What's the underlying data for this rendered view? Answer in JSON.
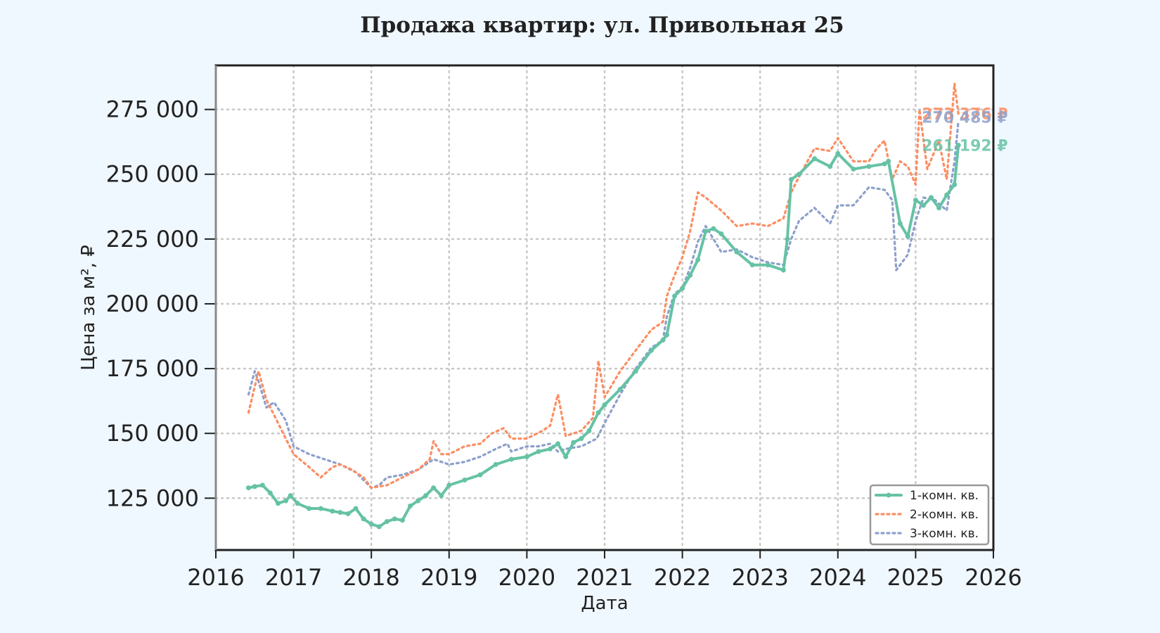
{
  "colors": {
    "background": "#f0f8ff",
    "plot_background": "#ffffff",
    "grid": "#c8c8c8",
    "series_1": "#66c2a5",
    "series_2": "#fc8d62",
    "series_3": "#8da0cb"
  },
  "chart_data": {
    "type": "line",
    "title": "Продажа квартир: ул. Привольная 25",
    "xlabel": "Дата",
    "ylabel": "Цена за м², ₽",
    "xlim": [
      2016,
      2026
    ],
    "ylim": [
      105000,
      292000
    ],
    "grid": true,
    "legend_position": "lower-right",
    "x_ticks": [
      "2016",
      "2017",
      "2018",
      "2019",
      "2020",
      "2021",
      "2022",
      "2023",
      "2024",
      "2025",
      "2026"
    ],
    "y_ticks": [
      "125 000",
      "150 000",
      "175 000",
      "200 000",
      "225 000",
      "250 000",
      "275 000"
    ],
    "series": [
      {
        "name": "1-комн. кв.",
        "style": "solid-markers",
        "end_label": "261 192 ₽",
        "x": [
          2016.42,
          2016.5,
          2016.6,
          2016.7,
          2016.8,
          2016.9,
          2016.96,
          2017.05,
          2017.2,
          2017.35,
          2017.5,
          2017.6,
          2017.7,
          2017.8,
          2017.9,
          2018.0,
          2018.1,
          2018.2,
          2018.3,
          2018.4,
          2018.5,
          2018.6,
          2018.7,
          2018.8,
          2018.9,
          2019.0,
          2019.2,
          2019.4,
          2019.6,
          2019.8,
          2020.0,
          2020.15,
          2020.3,
          2020.4,
          2020.5,
          2020.6,
          2020.7,
          2020.8,
          2020.92,
          2021.0,
          2021.2,
          2021.4,
          2021.6,
          2021.75,
          2021.8,
          2021.9,
          2022.0,
          2022.1,
          2022.2,
          2022.3,
          2022.4,
          2022.5,
          2022.7,
          2022.9,
          2023.1,
          2023.3,
          2023.35,
          2023.4,
          2023.5,
          2023.7,
          2023.9,
          2024.0,
          2024.2,
          2024.4,
          2024.6,
          2024.65,
          2024.8,
          2024.9,
          2025.0,
          2025.1,
          2025.2,
          2025.3,
          2025.4,
          2025.5,
          2025.55
        ],
        "values": [
          129000,
          129500,
          130000,
          127000,
          123000,
          124000,
          126000,
          123000,
          121000,
          121000,
          120000,
          119500,
          119000,
          121000,
          117000,
          115000,
          114000,
          116000,
          117000,
          116500,
          122000,
          124000,
          126000,
          129000,
          126000,
          130000,
          132000,
          134000,
          138000,
          140000,
          141000,
          143000,
          144000,
          146000,
          141000,
          146500,
          148000,
          151000,
          158000,
          161000,
          167000,
          174000,
          182000,
          186000,
          188000,
          203000,
          206000,
          211000,
          217000,
          228000,
          229000,
          227000,
          220000,
          215000,
          215000,
          213000,
          225000,
          248000,
          250000,
          256000,
          253000,
          258000,
          252000,
          253000,
          254000,
          255000,
          231000,
          226000,
          240000,
          238000,
          241000,
          237000,
          242000,
          246000,
          261192
        ]
      },
      {
        "name": "2-комн. кв.",
        "style": "dotted",
        "end_label": "273 376 ₽",
        "x": [
          2016.42,
          2016.5,
          2016.55,
          2016.65,
          2016.8,
          2016.9,
          2017.0,
          2017.2,
          2017.35,
          2017.5,
          2017.6,
          2017.75,
          2017.9,
          2018.0,
          2018.2,
          2018.4,
          2018.6,
          2018.75,
          2018.8,
          2018.9,
          2019.0,
          2019.2,
          2019.4,
          2019.55,
          2019.7,
          2019.8,
          2020.0,
          2020.2,
          2020.3,
          2020.4,
          2020.5,
          2020.7,
          2020.85,
          2020.92,
          2021.0,
          2021.2,
          2021.4,
          2021.6,
          2021.75,
          2021.8,
          2021.9,
          2022.0,
          2022.1,
          2022.2,
          2022.3,
          2022.5,
          2022.7,
          2022.9,
          2023.1,
          2023.3,
          2023.4,
          2023.5,
          2023.7,
          2023.9,
          2024.0,
          2024.2,
          2024.4,
          2024.5,
          2024.6,
          2024.7,
          2024.8,
          2024.9,
          2025.0,
          2025.05,
          2025.15,
          2025.3,
          2025.4,
          2025.5,
          2025.55
        ],
        "values": [
          158000,
          168000,
          174000,
          163000,
          154000,
          148000,
          142000,
          137000,
          133000,
          137000,
          138000,
          136000,
          133000,
          129000,
          130000,
          133000,
          136000,
          140000,
          147000,
          142000,
          142000,
          145000,
          146000,
          150000,
          152000,
          148000,
          148000,
          151000,
          153000,
          165000,
          149000,
          151000,
          156000,
          178000,
          164000,
          174000,
          182000,
          190000,
          193000,
          203000,
          211000,
          218000,
          228000,
          243000,
          241000,
          236000,
          230000,
          231000,
          230000,
          233000,
          243000,
          249000,
          260000,
          259000,
          264000,
          255000,
          255000,
          260000,
          263000,
          248000,
          255000,
          253000,
          246000,
          275000,
          252000,
          263000,
          248000,
          285000,
          273376
        ]
      },
      {
        "name": "3-комн. кв.",
        "style": "dotted",
        "end_label": "270 485 ₽",
        "x": [
          2016.42,
          2016.5,
          2016.55,
          2016.65,
          2016.75,
          2016.9,
          2017.0,
          2017.2,
          2017.4,
          2017.6,
          2017.8,
          2017.9,
          2018.0,
          2018.1,
          2018.2,
          2018.4,
          2018.6,
          2018.8,
          2019.0,
          2019.2,
          2019.4,
          2019.6,
          2019.75,
          2019.8,
          2020.0,
          2020.15,
          2020.3,
          2020.4,
          2020.5,
          2020.7,
          2020.9,
          2021.0,
          2021.2,
          2021.4,
          2021.6,
          2021.75,
          2021.8,
          2021.9,
          2022.0,
          2022.1,
          2022.2,
          2022.3,
          2022.5,
          2022.7,
          2022.9,
          2023.1,
          2023.3,
          2023.4,
          2023.5,
          2023.7,
          2023.9,
          2024.0,
          2024.2,
          2024.4,
          2024.6,
          2024.7,
          2024.75,
          2024.9,
          2025.0,
          2025.1,
          2025.25,
          2025.4,
          2025.5,
          2025.55
        ],
        "values": [
          165000,
          174000,
          170000,
          160000,
          162000,
          155000,
          145000,
          142000,
          140000,
          138000,
          135000,
          132000,
          129000,
          130000,
          133000,
          134000,
          136000,
          140000,
          138000,
          139000,
          141000,
          144000,
          146000,
          143000,
          145000,
          145000,
          146000,
          143000,
          144000,
          145000,
          148000,
          154000,
          165000,
          175000,
          183000,
          186000,
          195000,
          204000,
          206000,
          214000,
          224000,
          230000,
          220000,
          221000,
          218000,
          216000,
          215000,
          225000,
          232000,
          237000,
          231000,
          238000,
          238000,
          245000,
          244000,
          240000,
          213000,
          219000,
          232000,
          241000,
          240000,
          236000,
          255000,
          270485
        ]
      }
    ]
  }
}
